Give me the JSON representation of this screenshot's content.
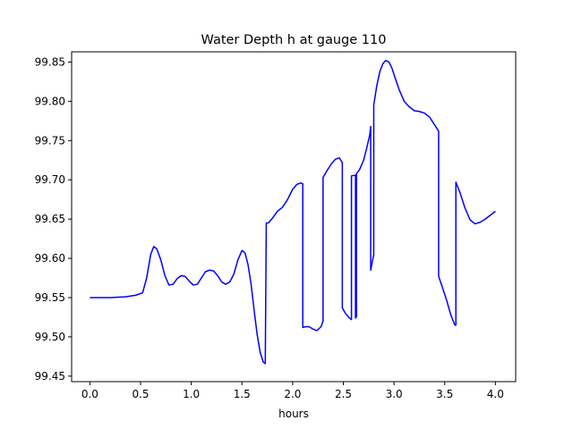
{
  "chart_data": {
    "type": "line",
    "title": "Water Depth h at gauge 110",
    "xlabel": "hours",
    "ylabel": "",
    "xlim": [
      -0.18,
      4.2
    ],
    "ylim": [
      99.443,
      99.863
    ],
    "xticks": [
      0.0,
      0.5,
      1.0,
      1.5,
      2.0,
      2.5,
      3.0,
      3.5,
      4.0
    ],
    "xtick_labels": [
      "0.0",
      "0.5",
      "1.0",
      "1.5",
      "2.0",
      "2.5",
      "3.0",
      "3.5",
      "4.0"
    ],
    "yticks": [
      99.45,
      99.5,
      99.55,
      99.6,
      99.65,
      99.7,
      99.75,
      99.8,
      99.85
    ],
    "ytick_labels": [
      "99.45",
      "99.50",
      "99.55",
      "99.60",
      "99.65",
      "99.70",
      "99.75",
      "99.80",
      "99.85"
    ],
    "grid": false,
    "series": [
      {
        "name": "",
        "color": "#0000ff",
        "x": [
          0.0,
          0.2,
          0.35,
          0.45,
          0.52,
          0.56,
          0.6,
          0.63,
          0.66,
          0.7,
          0.74,
          0.78,
          0.82,
          0.86,
          0.9,
          0.94,
          0.98,
          1.02,
          1.06,
          1.1,
          1.14,
          1.18,
          1.22,
          1.26,
          1.3,
          1.34,
          1.38,
          1.42,
          1.46,
          1.5,
          1.53,
          1.56,
          1.59,
          1.62,
          1.65,
          1.68,
          1.71,
          1.73,
          1.74,
          1.76,
          1.8,
          1.85,
          1.9,
          1.95,
          2.0,
          2.04,
          2.08,
          2.1,
          2.1,
          2.13,
          2.16,
          2.2,
          2.24,
          2.28,
          2.3,
          2.3,
          2.34,
          2.38,
          2.42,
          2.46,
          2.49,
          2.49,
          2.52,
          2.56,
          2.58,
          2.58,
          2.62,
          2.62,
          2.63,
          2.63,
          2.66,
          2.7,
          2.73,
          2.76,
          2.77,
          2.77,
          2.8,
          2.8,
          2.83,
          2.86,
          2.89,
          2.92,
          2.95,
          2.98,
          3.01,
          3.05,
          3.1,
          3.15,
          3.2,
          3.25,
          3.3,
          3.35,
          3.4,
          3.44,
          3.44,
          3.48,
          3.52,
          3.56,
          3.6,
          3.61,
          3.61,
          3.65,
          3.7,
          3.75,
          3.8,
          3.85,
          3.9,
          3.95,
          4.0
        ],
        "y": [
          99.55,
          99.55,
          99.551,
          99.553,
          99.556,
          99.575,
          99.605,
          99.615,
          99.612,
          99.598,
          99.578,
          99.566,
          99.567,
          99.574,
          99.578,
          99.577,
          99.571,
          99.566,
          99.567,
          99.575,
          99.583,
          99.585,
          99.584,
          99.578,
          99.57,
          99.567,
          99.57,
          99.58,
          99.598,
          99.61,
          99.607,
          99.592,
          99.567,
          99.534,
          99.503,
          99.48,
          99.468,
          99.466,
          99.645,
          99.645,
          99.651,
          99.66,
          99.665,
          99.675,
          99.688,
          99.694,
          99.696,
          99.695,
          99.512,
          99.513,
          99.513,
          99.51,
          99.508,
          99.513,
          99.52,
          99.703,
          99.712,
          99.72,
          99.726,
          99.728,
          99.722,
          99.537,
          99.53,
          99.524,
          99.522,
          99.705,
          99.706,
          99.524,
          99.526,
          99.708,
          99.713,
          99.725,
          99.74,
          99.757,
          99.768,
          99.585,
          99.605,
          99.795,
          99.82,
          99.838,
          99.848,
          99.852,
          99.85,
          99.842,
          99.83,
          99.815,
          99.8,
          99.793,
          99.788,
          99.787,
          99.785,
          99.78,
          99.77,
          99.762,
          99.577,
          99.562,
          99.546,
          99.528,
          99.515,
          99.515,
          99.697,
          99.684,
          99.664,
          99.649,
          99.644,
          99.646,
          99.65,
          99.655,
          99.66
        ]
      }
    ]
  }
}
